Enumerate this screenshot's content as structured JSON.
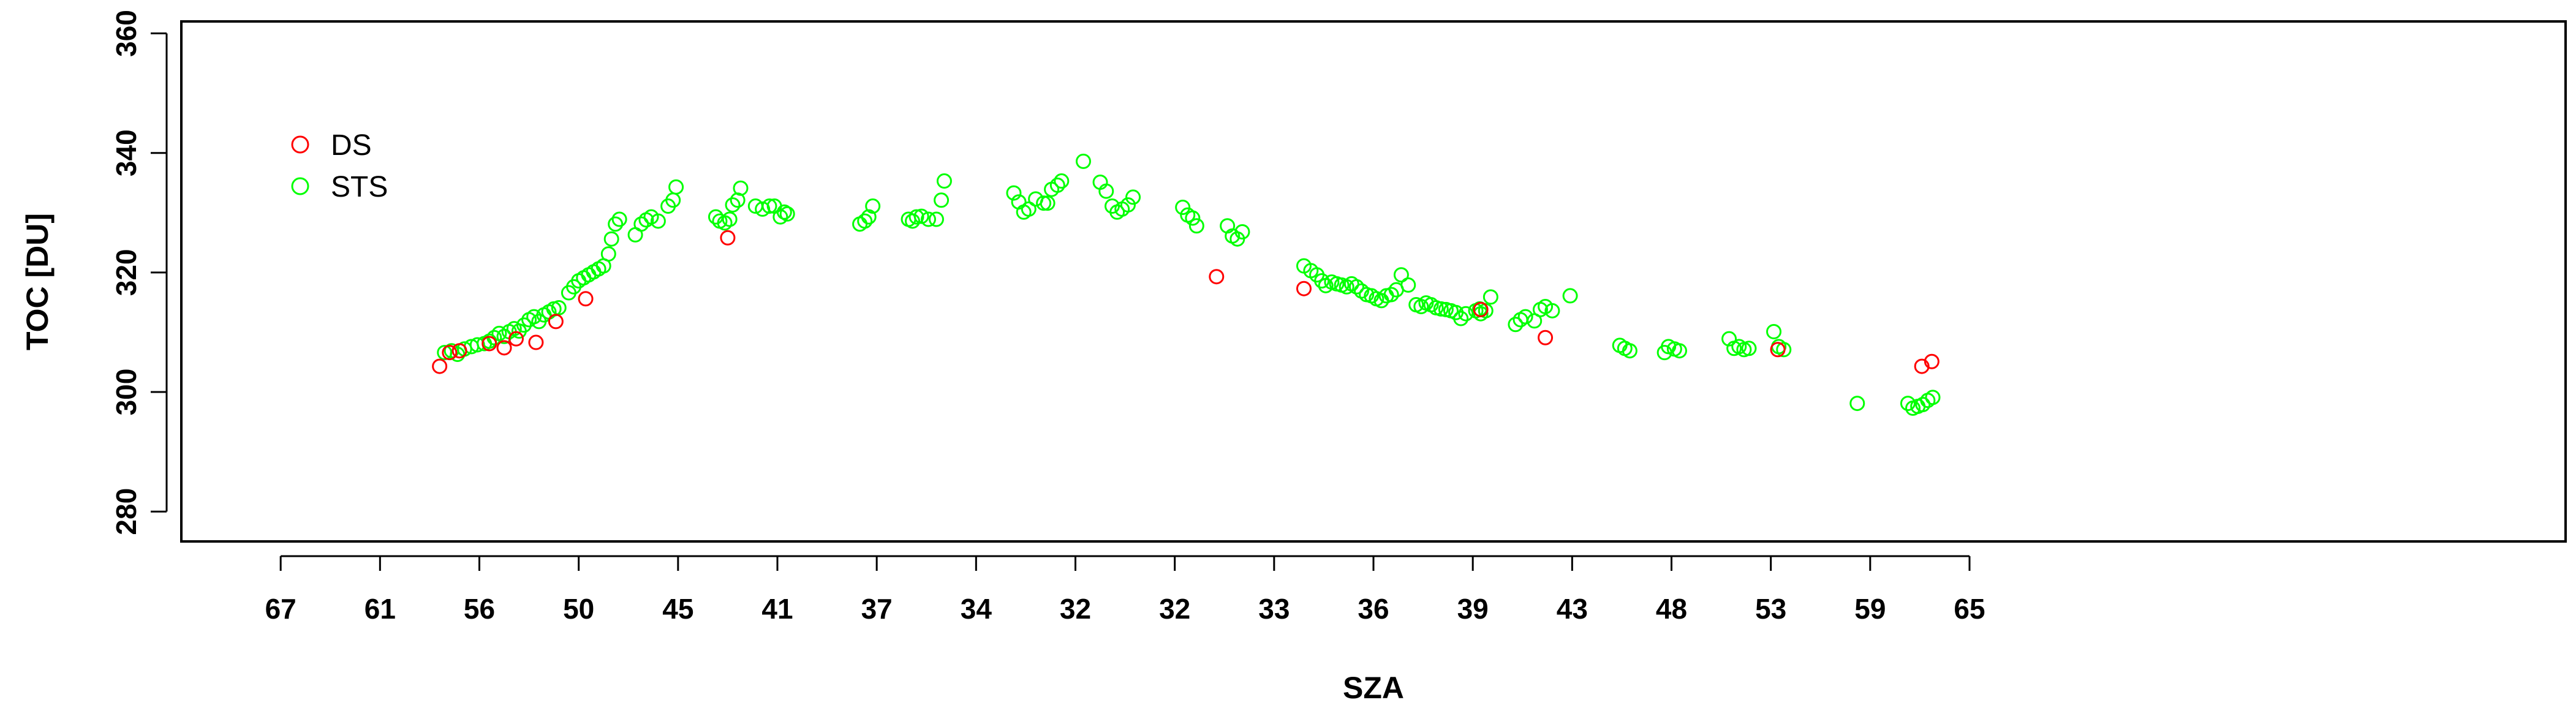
{
  "chart_data": {
    "type": "scatter",
    "title": "",
    "xlabel": "SZA",
    "ylabel": "TOC [DU]",
    "xlim": [
      0,
      24
    ],
    "ylim": [
      275,
      362
    ],
    "yticks": [
      280,
      300,
      320,
      340,
      360
    ],
    "x_tick_positions": [
      1,
      2,
      3,
      4,
      5,
      6,
      7,
      8,
      9,
      10,
      11,
      12,
      13,
      14,
      15,
      16,
      17,
      18
    ],
    "x_tick_labels": [
      "67",
      "61",
      "56",
      "50",
      "45",
      "41",
      "37",
      "34",
      "32",
      "32",
      "33",
      "36",
      "39",
      "43",
      "48",
      "53",
      "59",
      "65"
    ],
    "grid": false,
    "legend": {
      "position": "top-left",
      "entries": [
        {
          "name": "DS",
          "color": "#ff0000"
        },
        {
          "name": "STS",
          "color": "#00ff00"
        }
      ]
    },
    "series": [
      {
        "name": "STS",
        "color": "#00ff00",
        "points": [
          [
            2.65,
            306.6
          ],
          [
            2.72,
            306.9
          ],
          [
            2.78,
            306.3
          ],
          [
            2.85,
            307.2
          ],
          [
            2.92,
            307.6
          ],
          [
            2.98,
            307.9
          ],
          [
            3.05,
            308.1
          ],
          [
            3.1,
            308.5
          ],
          [
            3.15,
            309.1
          ],
          [
            3.2,
            309.8
          ],
          [
            3.25,
            309.3
          ],
          [
            3.3,
            310.1
          ],
          [
            3.35,
            310.6
          ],
          [
            3.4,
            310.2
          ],
          [
            3.45,
            311.2
          ],
          [
            3.5,
            312.1
          ],
          [
            3.55,
            312.6
          ],
          [
            3.6,
            311.8
          ],
          [
            3.65,
            312.9
          ],
          [
            3.7,
            313.4
          ],
          [
            3.75,
            313.9
          ],
          [
            3.8,
            314.1
          ],
          [
            3.9,
            316.6
          ],
          [
            3.95,
            317.6
          ],
          [
            4.0,
            318.6
          ],
          [
            4.05,
            319.1
          ],
          [
            4.1,
            319.6
          ],
          [
            4.15,
            320.1
          ],
          [
            4.2,
            320.6
          ],
          [
            4.25,
            321.1
          ],
          [
            4.3,
            323.1
          ],
          [
            4.33,
            325.6
          ],
          [
            4.37,
            328.1
          ],
          [
            4.41,
            328.9
          ],
          [
            4.57,
            326.3
          ],
          [
            4.63,
            328.1
          ],
          [
            4.68,
            328.8
          ],
          [
            4.73,
            329.3
          ],
          [
            4.8,
            328.6
          ],
          [
            4.9,
            331.1
          ],
          [
            4.95,
            332.1
          ],
          [
            4.98,
            334.3
          ],
          [
            5.38,
            329.3
          ],
          [
            5.42,
            328.6
          ],
          [
            5.47,
            328.3
          ],
          [
            5.52,
            328.9
          ],
          [
            5.55,
            331.3
          ],
          [
            5.6,
            332.1
          ],
          [
            5.63,
            334.1
          ],
          [
            5.78,
            331.1
          ],
          [
            5.85,
            330.6
          ],
          [
            5.92,
            331.1
          ],
          [
            5.97,
            331.1
          ],
          [
            6.03,
            329.3
          ],
          [
            6.07,
            330.1
          ],
          [
            6.1,
            329.8
          ],
          [
            6.83,
            328.1
          ],
          [
            6.88,
            328.6
          ],
          [
            6.92,
            329.3
          ],
          [
            6.96,
            331.1
          ],
          [
            7.32,
            328.9
          ],
          [
            7.36,
            328.6
          ],
          [
            7.4,
            329.3
          ],
          [
            7.45,
            329.4
          ],
          [
            7.52,
            328.9
          ],
          [
            7.6,
            328.9
          ],
          [
            7.65,
            332.1
          ],
          [
            7.68,
            335.3
          ],
          [
            8.38,
            333.3
          ],
          [
            8.43,
            331.8
          ],
          [
            8.48,
            330.1
          ],
          [
            8.53,
            330.6
          ],
          [
            8.6,
            332.3
          ],
          [
            8.68,
            331.6
          ],
          [
            8.72,
            331.6
          ],
          [
            8.76,
            333.9
          ],
          [
            8.82,
            334.6
          ],
          [
            8.86,
            335.3
          ],
          [
            9.08,
            338.6
          ],
          [
            9.25,
            335.1
          ],
          [
            9.31,
            333.6
          ],
          [
            9.37,
            331.1
          ],
          [
            9.42,
            330.1
          ],
          [
            9.47,
            330.6
          ],
          [
            9.53,
            331.3
          ],
          [
            9.58,
            332.6
          ],
          [
            10.08,
            330.9
          ],
          [
            10.13,
            329.6
          ],
          [
            10.18,
            329.1
          ],
          [
            10.22,
            327.8
          ],
          [
            10.53,
            327.8
          ],
          [
            10.58,
            326.1
          ],
          [
            10.63,
            325.6
          ],
          [
            10.68,
            326.8
          ],
          [
            11.3,
            321.1
          ],
          [
            11.37,
            320.3
          ],
          [
            11.43,
            319.6
          ],
          [
            11.48,
            318.6
          ],
          [
            11.52,
            317.8
          ],
          [
            11.58,
            318.4
          ],
          [
            11.63,
            318.1
          ],
          [
            11.68,
            317.9
          ],
          [
            11.73,
            317.6
          ],
          [
            11.78,
            318.1
          ],
          [
            11.83,
            317.6
          ],
          [
            11.88,
            316.9
          ],
          [
            11.93,
            316.3
          ],
          [
            11.98,
            316.1
          ],
          [
            12.03,
            315.6
          ],
          [
            12.08,
            315.3
          ],
          [
            12.13,
            316.1
          ],
          [
            12.18,
            316.3
          ],
          [
            12.23,
            317.1
          ],
          [
            12.28,
            319.6
          ],
          [
            12.35,
            317.9
          ],
          [
            12.43,
            314.6
          ],
          [
            12.48,
            314.3
          ],
          [
            12.53,
            314.9
          ],
          [
            12.58,
            314.6
          ],
          [
            12.63,
            314.1
          ],
          [
            12.68,
            313.9
          ],
          [
            12.73,
            313.8
          ],
          [
            12.78,
            313.6
          ],
          [
            12.83,
            313.3
          ],
          [
            12.88,
            312.3
          ],
          [
            12.93,
            313.1
          ],
          [
            13.03,
            313.6
          ],
          [
            13.08,
            313.1
          ],
          [
            13.13,
            313.6
          ],
          [
            13.18,
            315.9
          ],
          [
            13.07,
            313.9
          ],
          [
            13.43,
            311.3
          ],
          [
            13.48,
            312.1
          ],
          [
            13.53,
            312.6
          ],
          [
            13.62,
            311.9
          ],
          [
            13.68,
            313.8
          ],
          [
            13.73,
            314.3
          ],
          [
            13.8,
            313.6
          ],
          [
            13.98,
            316.1
          ],
          [
            14.48,
            307.8
          ],
          [
            14.53,
            307.3
          ],
          [
            14.58,
            306.9
          ],
          [
            14.93,
            306.6
          ],
          [
            14.97,
            307.6
          ],
          [
            15.03,
            307.2
          ],
          [
            15.08,
            306.9
          ],
          [
            15.58,
            308.9
          ],
          [
            15.63,
            307.3
          ],
          [
            15.68,
            307.6
          ],
          [
            15.73,
            307.1
          ],
          [
            15.78,
            307.3
          ],
          [
            16.03,
            310.1
          ],
          [
            16.08,
            307.6
          ],
          [
            16.13,
            307.1
          ],
          [
            16.87,
            298.1
          ],
          [
            17.38,
            298.1
          ],
          [
            17.43,
            297.3
          ],
          [
            17.48,
            297.6
          ],
          [
            17.53,
            297.9
          ],
          [
            17.58,
            298.6
          ],
          [
            17.63,
            299.1
          ]
        ]
      },
      {
        "name": "DS",
        "color": "#ff0000",
        "points": [
          [
            2.6,
            304.3
          ],
          [
            2.7,
            306.6
          ],
          [
            2.8,
            306.9
          ],
          [
            3.1,
            308.1
          ],
          [
            3.25,
            307.4
          ],
          [
            3.37,
            308.9
          ],
          [
            3.57,
            308.3
          ],
          [
            3.77,
            311.8
          ],
          [
            4.07,
            315.6
          ],
          [
            5.5,
            325.8
          ],
          [
            10.42,
            319.3
          ],
          [
            11.3,
            317.3
          ],
          [
            13.08,
            313.8
          ],
          [
            13.73,
            309.1
          ],
          [
            16.07,
            307.1
          ],
          [
            17.52,
            304.3
          ],
          [
            17.62,
            305.1
          ]
        ]
      }
    ]
  }
}
